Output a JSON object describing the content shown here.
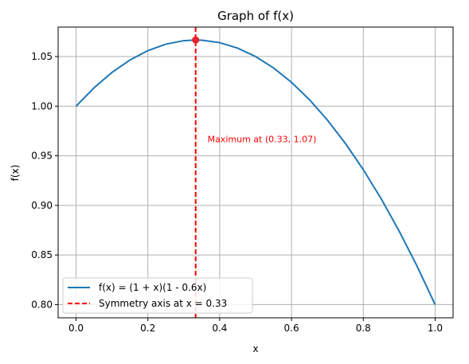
{
  "chart_data": {
    "type": "line",
    "title": "Graph of f(x)",
    "xlabel": "x",
    "ylabel": "f(x)",
    "xlim": [
      -0.05,
      1.05
    ],
    "ylim": [
      0.7867,
      1.0797
    ],
    "xticks": [
      0.0,
      0.2,
      0.4,
      0.6,
      0.8,
      1.0
    ],
    "xtick_labels": [
      "0.0",
      "0.2",
      "0.4",
      "0.6",
      "0.8",
      "1.0"
    ],
    "yticks": [
      0.8,
      0.85,
      0.9,
      0.95,
      1.0,
      1.05
    ],
    "ytick_labels": [
      "0.80",
      "0.85",
      "0.90",
      "0.95",
      "1.00",
      "1.05"
    ],
    "grid": true,
    "legend_position": "lower-left",
    "series": [
      {
        "name": "f(x) = (1 + x)(1 - 0.6x)",
        "kind": "curve",
        "color": "#1f77b4",
        "x": [
          0.0,
          0.05,
          0.1,
          0.15,
          0.2,
          0.25,
          0.3,
          0.333,
          0.35,
          0.4,
          0.45,
          0.5,
          0.55,
          0.6,
          0.65,
          0.7,
          0.75,
          0.8,
          0.85,
          0.9,
          0.95,
          1.0
        ],
        "y": [
          1.0,
          1.0185,
          1.034,
          1.0465,
          1.056,
          1.0625,
          1.066,
          1.0667,
          1.0665,
          1.064,
          1.0585,
          1.05,
          1.0385,
          1.024,
          1.0065,
          0.986,
          0.9625,
          0.936,
          0.9065,
          0.874,
          0.8385,
          0.8
        ]
      },
      {
        "name": "Symmetry axis at x = 0.33",
        "kind": "vline",
        "color": "#ff0000",
        "x": 0.333
      }
    ],
    "points": [
      {
        "x": 0.333,
        "y": 1.0667,
        "color": "#e8202a"
      }
    ],
    "annotations": [
      {
        "text": "Maximum at (0.33, 1.07)",
        "x": 0.366,
        "y": 0.967,
        "color": "#ff0000"
      }
    ]
  }
}
